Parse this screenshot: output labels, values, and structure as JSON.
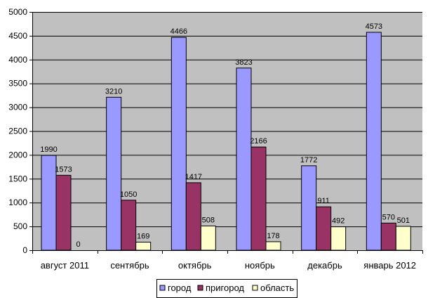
{
  "chart_data": {
    "type": "bar",
    "title": "",
    "xlabel": "",
    "ylabel": "",
    "categories": [
      "август 2011",
      "сентябрь",
      "октябрь",
      "ноябрь",
      "декабрь",
      "январь 2012"
    ],
    "series": [
      {
        "name": "город",
        "color": "#9999FF",
        "values": [
          1990,
          3210,
          4466,
          3823,
          1772,
          4573
        ]
      },
      {
        "name": "пригород",
        "color": "#993366",
        "values": [
          1573,
          1050,
          1417,
          2166,
          911,
          570
        ]
      },
      {
        "name": "область",
        "color": "#FFFFCC",
        "values": [
          0,
          169,
          508,
          178,
          492,
          501
        ]
      }
    ],
    "ylim": [
      0,
      5000
    ],
    "yticks": [
      0,
      500,
      1000,
      1500,
      2000,
      2500,
      3000,
      3500,
      4000,
      4500,
      5000
    ],
    "grid": true,
    "legend_position": "bottom",
    "plot_background": "#C0C0C0"
  }
}
